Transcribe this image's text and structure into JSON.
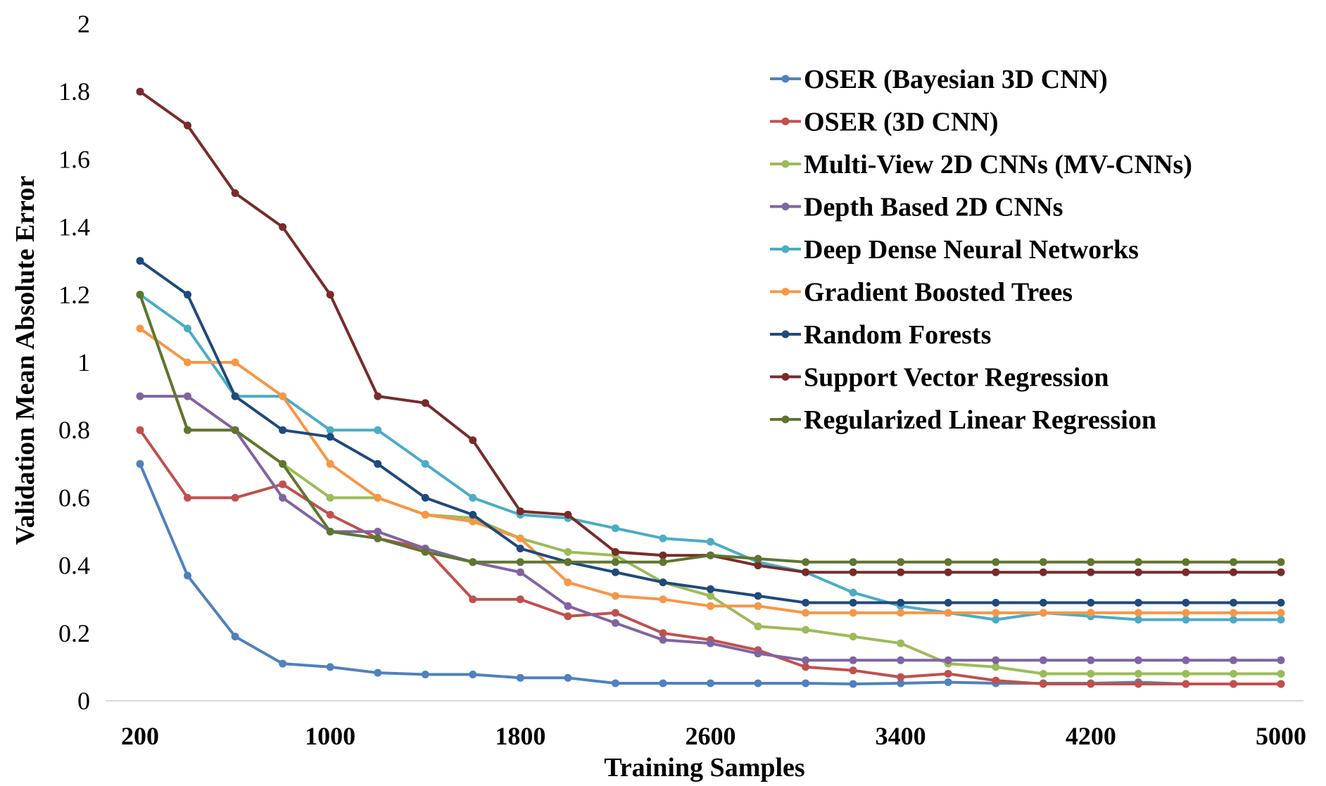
{
  "chart_data": {
    "type": "line",
    "title": "",
    "xlabel": "Training Samples",
    "ylabel": "Validation Mean Absolute Error",
    "x": [
      200,
      400,
      600,
      800,
      1000,
      1200,
      1400,
      1600,
      1800,
      2000,
      2200,
      2400,
      2600,
      2800,
      3000,
      3200,
      3400,
      3600,
      3800,
      4000,
      4200,
      4400,
      4600,
      4800,
      5000
    ],
    "xlim": [
      200,
      5000
    ],
    "ylim": [
      0,
      2
    ],
    "x_ticks": [
      "200",
      "1000",
      "1800",
      "2600",
      "3400",
      "4200",
      "5000"
    ],
    "y_ticks": [
      "0",
      "0.2",
      "0.4",
      "0.6",
      "0.8",
      "1",
      "1.2",
      "1.4",
      "1.6",
      "1.8",
      "2"
    ],
    "grid": false,
    "legend_position": "top-right",
    "series": [
      {
        "name": "OSER (Bayesian 3D CNN)",
        "color": "#4F81BD",
        "values": [
          0.7,
          0.37,
          0.19,
          0.11,
          0.1,
          0.083,
          0.078,
          0.078,
          0.068,
          0.068,
          0.052,
          0.052,
          0.052,
          0.052,
          0.052,
          0.05,
          0.052,
          0.055,
          0.052,
          0.052,
          0.052,
          0.055,
          0.05,
          0.05,
          0.05
        ]
      },
      {
        "name": "OSER (3D CNN)",
        "color": "#C0504D",
        "values": [
          0.8,
          0.6,
          0.6,
          0.64,
          0.55,
          0.48,
          0.45,
          0.3,
          0.3,
          0.25,
          0.26,
          0.2,
          0.18,
          0.15,
          0.1,
          0.09,
          0.07,
          0.08,
          0.06,
          0.05,
          0.05,
          0.05,
          0.05,
          0.05,
          0.05
        ]
      },
      {
        "name": "Multi-View 2D CNNs (MV-CNNs)",
        "color": "#9BBB59",
        "values": [
          1.2,
          0.8,
          0.8,
          0.7,
          0.6,
          0.6,
          0.55,
          0.54,
          0.48,
          0.44,
          0.43,
          0.35,
          0.31,
          0.22,
          0.21,
          0.19,
          0.17,
          0.11,
          0.1,
          0.08,
          0.08,
          0.08,
          0.08,
          0.08,
          0.08
        ]
      },
      {
        "name": "Depth Based 2D CNNs",
        "color": "#8064A2",
        "values": [
          0.9,
          0.9,
          0.8,
          0.6,
          0.5,
          0.5,
          0.45,
          0.41,
          0.38,
          0.28,
          0.23,
          0.18,
          0.17,
          0.14,
          0.12,
          0.12,
          0.12,
          0.12,
          0.12,
          0.12,
          0.12,
          0.12,
          0.12,
          0.12,
          0.12
        ]
      },
      {
        "name": "Deep Dense Neural Networks",
        "color": "#4BACC6",
        "values": [
          1.2,
          1.1,
          0.9,
          0.9,
          0.8,
          0.8,
          0.7,
          0.6,
          0.55,
          0.54,
          0.51,
          0.48,
          0.47,
          0.41,
          0.38,
          0.32,
          0.28,
          0.26,
          0.24,
          0.26,
          0.25,
          0.24,
          0.24,
          0.24,
          0.24
        ]
      },
      {
        "name": "Gradient Boosted Trees",
        "color": "#F79646",
        "values": [
          1.1,
          1.0,
          1.0,
          0.9,
          0.7,
          0.6,
          0.55,
          0.53,
          0.48,
          0.35,
          0.31,
          0.3,
          0.28,
          0.28,
          0.26,
          0.26,
          0.26,
          0.26,
          0.26,
          0.26,
          0.26,
          0.26,
          0.26,
          0.26,
          0.26
        ]
      },
      {
        "name": "Random Forests",
        "color": "#1F497D",
        "values": [
          1.3,
          1.2,
          0.9,
          0.8,
          0.78,
          0.7,
          0.6,
          0.55,
          0.45,
          0.41,
          0.38,
          0.35,
          0.33,
          0.31,
          0.29,
          0.29,
          0.29,
          0.29,
          0.29,
          0.29,
          0.29,
          0.29,
          0.29,
          0.29,
          0.29
        ]
      },
      {
        "name": "Support Vector Regression",
        "color": "#772C2A",
        "values": [
          1.8,
          1.7,
          1.5,
          1.4,
          1.2,
          0.9,
          0.88,
          0.77,
          0.56,
          0.55,
          0.44,
          0.43,
          0.43,
          0.4,
          0.38,
          0.38,
          0.38,
          0.38,
          0.38,
          0.38,
          0.38,
          0.38,
          0.38,
          0.38,
          0.38
        ]
      },
      {
        "name": "Regularized Linear Regression",
        "color": "#5F7530",
        "values": [
          1.2,
          0.8,
          0.8,
          0.7,
          0.5,
          0.48,
          0.44,
          0.41,
          0.41,
          0.41,
          0.41,
          0.41,
          0.43,
          0.42,
          0.41,
          0.41,
          0.41,
          0.41,
          0.41,
          0.41,
          0.41,
          0.41,
          0.41,
          0.41,
          0.41
        ]
      }
    ]
  }
}
